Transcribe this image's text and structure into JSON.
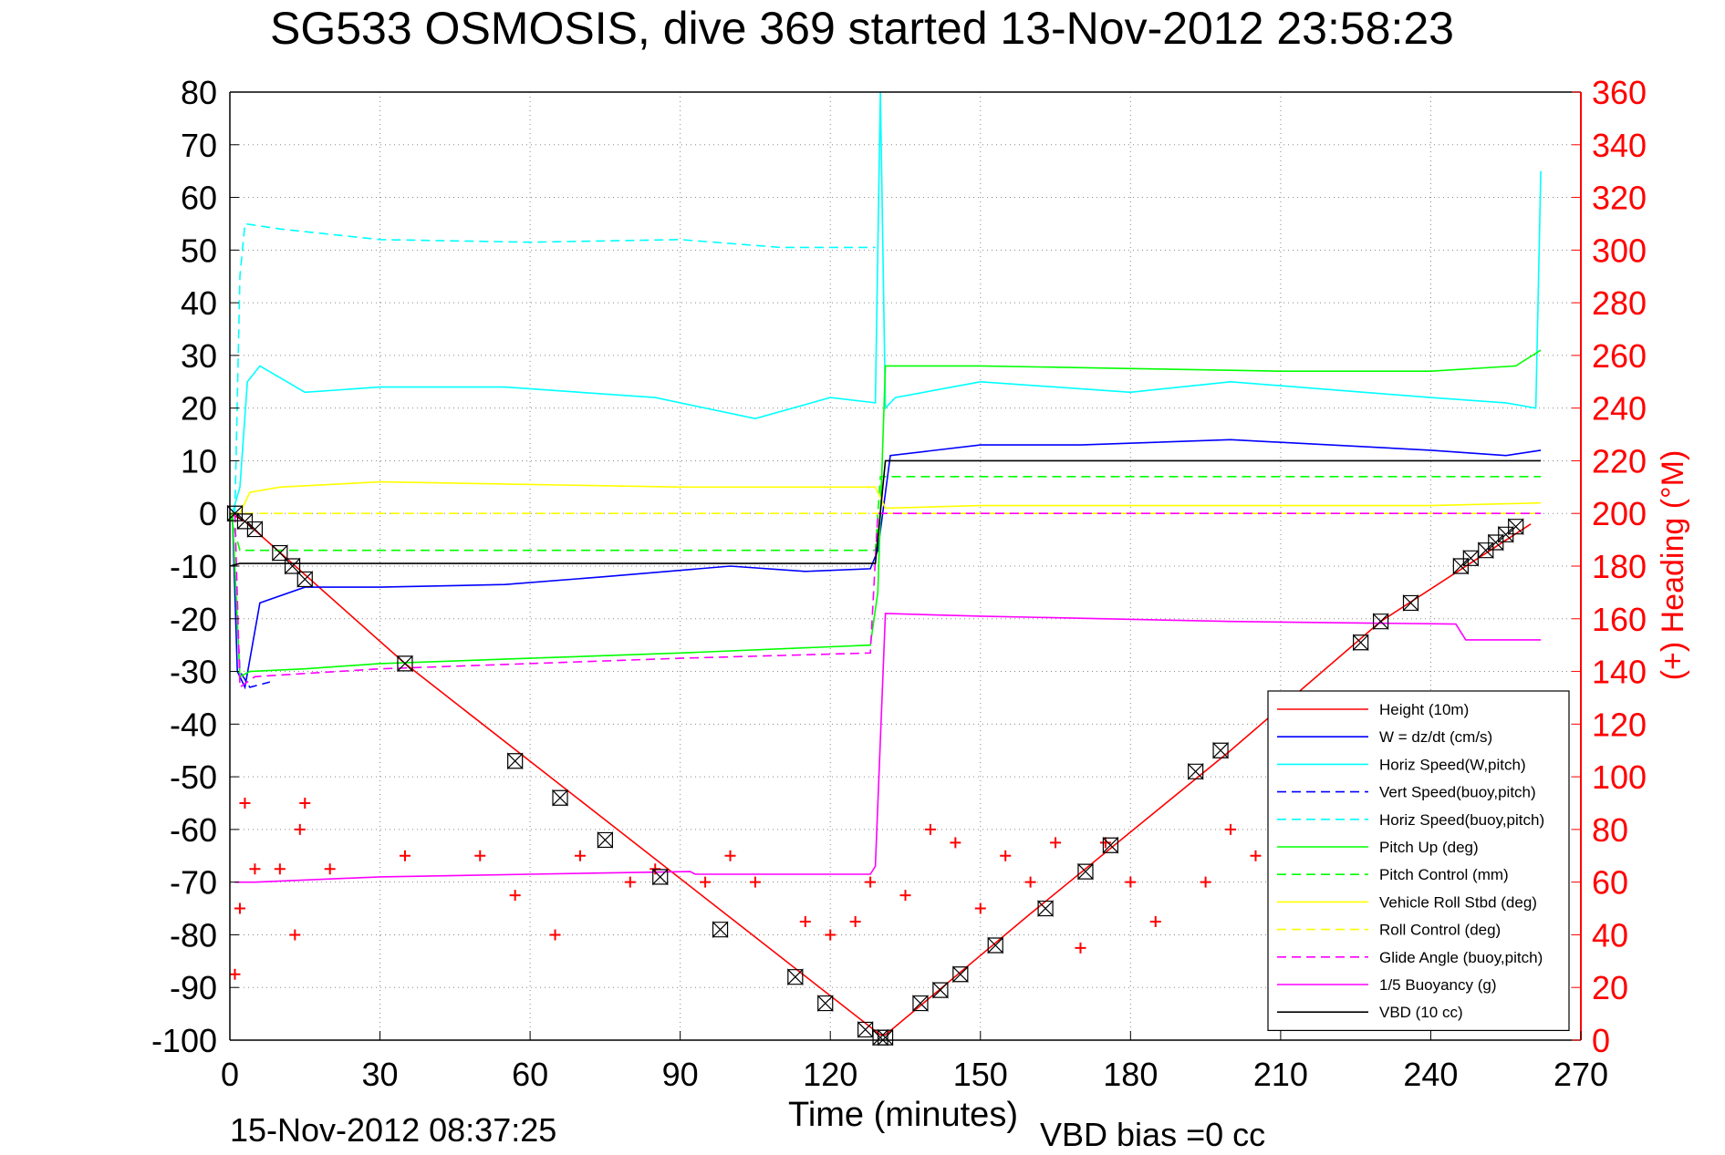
{
  "chart_data": {
    "type": "line",
    "title": "SG533 OSMOSIS, dive 369 started 13-Nov-2012 23:58:23",
    "xlabel": "Time (minutes)",
    "ylabel": "",
    "y2label": "(+) Heading (°M)",
    "footer_left": "15-Nov-2012 08:37:25",
    "footer_right": "VBD bias =0 cc",
    "xlim": [
      0,
      270
    ],
    "ylim": [
      -100,
      80
    ],
    "y2lim": [
      0,
      360
    ],
    "xticks": [
      0,
      30,
      60,
      90,
      120,
      150,
      180,
      210,
      240,
      270
    ],
    "yticks": [
      80,
      70,
      60,
      50,
      40,
      30,
      20,
      10,
      0,
      -10,
      -20,
      -30,
      -40,
      -50,
      -60,
      -70,
      -80,
      -90,
      -100
    ],
    "y2ticks": [
      360,
      340,
      320,
      300,
      280,
      260,
      240,
      220,
      200,
      180,
      160,
      140,
      120,
      100,
      80,
      60,
      40,
      20,
      0
    ],
    "grid": true,
    "legend_position": "bottom-right",
    "colors": {
      "red": "#ff0000",
      "blue": "#0000ff",
      "cyan": "#00ffff",
      "green": "#00ff00",
      "yellow": "#ffff00",
      "magenta": "#ff00ff",
      "black": "#000000"
    },
    "series": [
      {
        "name": "Height (10m)",
        "color": "#ff0000",
        "style": "solid",
        "axis": "left",
        "x": [
          0,
          3,
          35,
          130,
          131,
          160,
          200,
          230,
          260
        ],
        "y": [
          0,
          -1.5,
          -28.5,
          -99,
          -99,
          -76,
          -45,
          -20.5,
          -2
        ]
      },
      {
        "name": "W = dz/dt (cm/s)",
        "color": "#0000ff",
        "style": "solid",
        "axis": "left",
        "x": [
          0.5,
          1.5,
          3,
          6,
          15,
          30,
          55,
          75,
          100,
          115,
          128,
          129.5,
          132,
          150,
          170,
          200,
          240,
          255,
          262
        ],
        "y": [
          0,
          -30,
          -33,
          -17,
          -14,
          -14,
          -13.5,
          -12,
          -10,
          -11,
          -10.5,
          -7,
          11,
          13,
          13,
          14,
          12,
          11,
          12
        ]
      },
      {
        "name": "Horiz Speed(W,pitch)",
        "color": "#00ffff",
        "style": "solid",
        "axis": "left",
        "x": [
          0.5,
          2,
          3.5,
          6,
          15,
          30,
          55,
          85,
          105,
          120,
          129,
          130,
          131,
          133,
          150,
          180,
          200,
          240,
          255,
          261,
          262
        ],
        "y": [
          0,
          5,
          25,
          28,
          23,
          24,
          24,
          22,
          18,
          22,
          21,
          80,
          20,
          22,
          25,
          23,
          25,
          22,
          21,
          20,
          65
        ]
      },
      {
        "name": "Vert Speed(buoy,pitch)",
        "color": "#0000ff",
        "style": "dashed",
        "axis": "left",
        "x": [
          0.5,
          2,
          4,
          8
        ],
        "y": [
          0,
          -30,
          -33,
          -32
        ]
      },
      {
        "name": "Horiz Speed(buoy,pitch)",
        "color": "#00ffff",
        "style": "dashed",
        "axis": "left",
        "x": [
          1,
          2,
          3,
          10,
          30,
          60,
          90,
          110,
          129
        ],
        "y": [
          0,
          45,
          55,
          54,
          52,
          51.5,
          52,
          50.5,
          50.5
        ]
      },
      {
        "name": "Pitch Up (deg)",
        "color": "#00ff00",
        "style": "solid",
        "axis": "left",
        "x": [
          0.5,
          2,
          4,
          15,
          30,
          60,
          90,
          128,
          129.5,
          131,
          150,
          180,
          210,
          240,
          257,
          262
        ],
        "y": [
          0,
          -31,
          -30,
          -29.5,
          -28.5,
          -27.5,
          -26.5,
          -25,
          -15,
          28,
          28,
          27.5,
          27,
          27,
          28,
          31
        ]
      },
      {
        "name": "Pitch Control (mm)",
        "color": "#00ff00",
        "style": "dashed",
        "axis": "left",
        "x": [
          0,
          2,
          129,
          130,
          262
        ],
        "y": [
          0,
          -7,
          -7,
          7,
          7
        ]
      },
      {
        "name": "Vehicle Roll Stbd (deg)",
        "color": "#ffff00",
        "style": "solid",
        "axis": "left",
        "x": [
          0,
          2,
          4,
          10,
          30,
          60,
          90,
          129,
          131,
          150,
          180,
          210,
          240,
          262
        ],
        "y": [
          0,
          0,
          4,
          5,
          6,
          5.5,
          5,
          5,
          1,
          1.5,
          1.5,
          1.5,
          1.5,
          2
        ]
      },
      {
        "name": "Roll Control (deg)",
        "color": "#ffff00",
        "style": "dashed",
        "axis": "left",
        "x": [
          0,
          262
        ],
        "y": [
          0,
          0
        ]
      },
      {
        "name": "Glide Angle (buoy,pitch)",
        "color": "#ff00ff",
        "style": "dashed",
        "axis": "left",
        "x": [
          1,
          2,
          5,
          30,
          60,
          90,
          128,
          129.5,
          262
        ],
        "y": [
          0,
          -33,
          -31,
          -29.5,
          -28.5,
          -27.5,
          -26.5,
          0,
          0
        ]
      },
      {
        "name": "1/5 Buoyancy (g)",
        "color": "#ff00ff",
        "style": "solid",
        "axis": "left",
        "x": [
          1,
          5,
          30,
          60,
          92,
          93,
          128,
          129,
          131,
          150,
          200,
          245,
          247,
          262
        ],
        "y": [
          -70,
          -70,
          -69,
          -68.5,
          -68,
          -68.5,
          -68.5,
          -67,
          -19,
          -19.5,
          -20.5,
          -21,
          -24,
          -24
        ]
      },
      {
        "name": "VBD (10 cc)",
        "color": "#000000",
        "style": "solid",
        "axis": "left",
        "x": [
          0,
          2,
          129,
          131,
          262
        ],
        "y": [
          -10,
          -9.5,
          -9.5,
          10,
          10
        ]
      },
      {
        "name": "Heading",
        "color": "#ff0000",
        "style": "plus",
        "axis": "right",
        "x": [
          1,
          2,
          3,
          5,
          10,
          13,
          14,
          15,
          20,
          35,
          50,
          57,
          65,
          70,
          80,
          85,
          95,
          100,
          105,
          115,
          120,
          125,
          128,
          135,
          140,
          145,
          150,
          155,
          160,
          165,
          170,
          175,
          180,
          185,
          195,
          200,
          205,
          215
        ],
        "y": [
          25,
          50,
          90,
          65,
          65,
          40,
          80,
          90,
          65,
          70,
          70,
          55,
          40,
          70,
          60,
          65,
          60,
          70,
          60,
          45,
          40,
          45,
          60,
          55,
          80,
          75,
          50,
          70,
          60,
          75,
          35,
          75,
          60,
          45,
          60,
          80,
          70,
          65
        ]
      },
      {
        "name": "Height markers",
        "color": "#000000",
        "style": "marker",
        "axis": "left",
        "x": [
          1,
          3,
          5,
          10,
          12.5,
          15,
          35,
          57,
          66,
          75,
          86,
          98,
          113,
          119,
          127,
          130,
          131,
          138,
          142,
          146,
          153,
          163,
          171,
          176,
          193,
          198,
          226,
          230,
          236,
          246,
          248,
          251,
          253,
          255,
          257
        ],
        "y": [
          0,
          -1.5,
          -3,
          -7.5,
          -10,
          -12.5,
          -28.5,
          -47,
          -54,
          -62,
          -69,
          -79,
          -88,
          -93,
          -98,
          -99.5,
          -99.5,
          -93,
          -90.5,
          -87.5,
          -82,
          -75,
          -68,
          -63,
          -49,
          -45,
          -24.5,
          -20.5,
          -17,
          -10,
          -8.5,
          -7,
          -5.5,
          -4,
          -2.5
        ]
      }
    ]
  }
}
